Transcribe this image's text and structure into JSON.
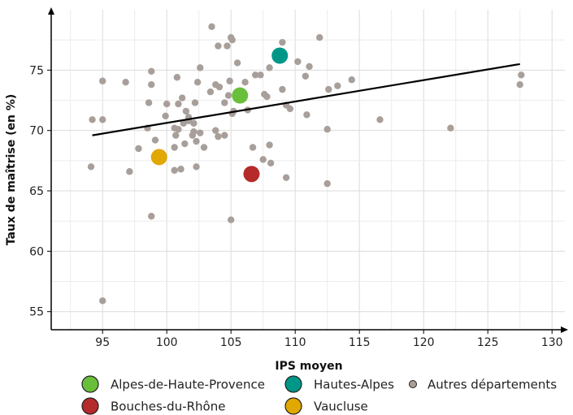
{
  "chart_data": {
    "type": "scatter",
    "xlabel": "IPS moyen",
    "ylabel": "Taux de maîtrise (en %)",
    "xlim": [
      91,
      131
    ],
    "ylim": [
      53.5,
      80
    ],
    "xticks": [
      95,
      100,
      105,
      110,
      115,
      120,
      125,
      130
    ],
    "yticks": [
      55,
      60,
      65,
      70,
      75
    ],
    "grid": true,
    "legend_position": "bottom",
    "trendline": {
      "x": [
        94.2,
        127.5
      ],
      "y": [
        69.6,
        75.5
      ],
      "color": "#000000"
    },
    "highlight_series": [
      {
        "name": "Alpes-de-Haute-Provence",
        "color": "#6ABF3A",
        "x": 105.7,
        "y": 72.9
      },
      {
        "name": "Hautes-Alpes",
        "color": "#009688",
        "x": 108.8,
        "y": 76.2
      },
      {
        "name": "Bouches-du-Rhône",
        "color": "#B52A2A",
        "x": 106.6,
        "y": 66.4
      },
      {
        "name": "Vaucluse",
        "color": "#E0A800",
        "x": 99.4,
        "y": 67.8
      }
    ],
    "other_series": {
      "name": "Autres départements",
      "color": "#A89F9A",
      "points": [
        [
          103.5,
          78.6
        ],
        [
          105.0,
          77.7
        ],
        [
          105.1,
          77.5
        ],
        [
          111.9,
          77.7
        ],
        [
          104.0,
          77.0
        ],
        [
          104.7,
          77.0
        ],
        [
          109.0,
          77.3
        ],
        [
          98.8,
          74.9
        ],
        [
          102.6,
          75.2
        ],
        [
          105.5,
          75.6
        ],
        [
          108.0,
          75.2
        ],
        [
          110.2,
          75.7
        ],
        [
          111.1,
          75.3
        ],
        [
          95.0,
          74.1
        ],
        [
          96.8,
          74.0
        ],
        [
          100.8,
          74.4
        ],
        [
          98.8,
          73.8
        ],
        [
          102.4,
          74.0
        ],
        [
          103.8,
          73.8
        ],
        [
          104.1,
          73.6
        ],
        [
          104.9,
          74.1
        ],
        [
          106.1,
          74.0
        ],
        [
          106.9,
          74.6
        ],
        [
          107.3,
          74.6
        ],
        [
          110.8,
          74.5
        ],
        [
          114.4,
          74.2
        ],
        [
          113.3,
          73.7
        ],
        [
          112.6,
          73.4
        ],
        [
          109.0,
          73.4
        ],
        [
          107.6,
          73.0
        ],
        [
          107.8,
          72.8
        ],
        [
          103.4,
          73.2
        ],
        [
          101.2,
          72.7
        ],
        [
          100.0,
          72.2
        ],
        [
          100.9,
          72.2
        ],
        [
          102.2,
          72.3
        ],
        [
          98.6,
          72.3
        ],
        [
          104.5,
          72.3
        ],
        [
          104.8,
          72.9
        ],
        [
          105.2,
          71.6
        ],
        [
          106.3,
          71.7
        ],
        [
          109.3,
          72.1
        ],
        [
          109.6,
          71.8
        ],
        [
          110.9,
          71.3
        ],
        [
          101.5,
          71.6
        ],
        [
          101.7,
          71.1
        ],
        [
          102.1,
          70.6
        ],
        [
          99.9,
          71.2
        ],
        [
          101.3,
          70.6
        ],
        [
          101.7,
          70.8
        ],
        [
          100.6,
          70.2
        ],
        [
          100.9,
          70.1
        ],
        [
          102.0,
          69.6
        ],
        [
          102.6,
          69.8
        ],
        [
          103.8,
          70.0
        ],
        [
          104.0,
          69.5
        ],
        [
          104.5,
          69.6
        ],
        [
          105.1,
          71.4
        ],
        [
          94.2,
          70.9
        ],
        [
          95.0,
          70.9
        ],
        [
          98.5,
          70.2
        ],
        [
          99.1,
          69.2
        ],
        [
          100.7,
          69.6
        ],
        [
          101.4,
          68.9
        ],
        [
          102.1,
          69.9
        ],
        [
          102.3,
          69.1
        ],
        [
          102.9,
          68.6
        ],
        [
          100.6,
          68.6
        ],
        [
          97.8,
          68.5
        ],
        [
          107.5,
          67.6
        ],
        [
          108.0,
          68.8
        ],
        [
          108.1,
          67.3
        ],
        [
          106.7,
          68.6
        ],
        [
          100.6,
          66.7
        ],
        [
          101.1,
          66.8
        ],
        [
          102.3,
          67.0
        ],
        [
          97.1,
          66.6
        ],
        [
          109.3,
          66.1
        ],
        [
          94.1,
          67.0
        ],
        [
          112.5,
          70.1
        ],
        [
          116.6,
          70.9
        ],
        [
          122.1,
          70.2
        ],
        [
          127.6,
          74.6
        ],
        [
          127.5,
          73.8
        ],
        [
          112.5,
          65.6
        ],
        [
          98.8,
          62.9
        ],
        [
          105.0,
          62.6
        ],
        [
          95.0,
          55.9
        ]
      ]
    }
  }
}
